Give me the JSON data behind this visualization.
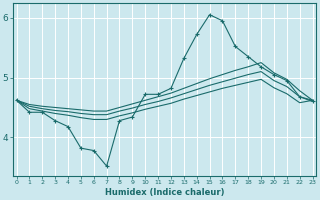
{
  "xlabel": "Humidex (Indice chaleur)",
  "bg_color": "#cce8ee",
  "line_color": "#1a6b6b",
  "grid_color": "#ffffff",
  "x": [
    0,
    1,
    2,
    3,
    4,
    5,
    6,
    7,
    8,
    9,
    10,
    11,
    12,
    13,
    14,
    15,
    16,
    17,
    18,
    19,
    20,
    21,
    22,
    23
  ],
  "y_main": [
    4.62,
    4.42,
    4.42,
    4.28,
    4.18,
    3.82,
    3.78,
    3.52,
    4.28,
    4.34,
    4.72,
    4.72,
    4.82,
    5.32,
    5.72,
    6.05,
    5.95,
    5.52,
    5.35,
    5.18,
    5.05,
    4.95,
    4.68,
    4.6
  ],
  "y_top": [
    4.62,
    4.55,
    4.52,
    4.5,
    4.48,
    4.46,
    4.44,
    4.44,
    4.5,
    4.56,
    4.62,
    4.68,
    4.74,
    4.82,
    4.9,
    4.98,
    5.05,
    5.12,
    5.18,
    5.25,
    5.08,
    4.97,
    4.78,
    4.62
  ],
  "y_mid": [
    4.62,
    4.52,
    4.48,
    4.45,
    4.43,
    4.4,
    4.38,
    4.38,
    4.44,
    4.49,
    4.55,
    4.6,
    4.66,
    4.73,
    4.8,
    4.87,
    4.93,
    4.99,
    5.05,
    5.1,
    4.95,
    4.85,
    4.68,
    4.62
  ],
  "y_bot": [
    4.62,
    4.48,
    4.44,
    4.4,
    4.37,
    4.33,
    4.3,
    4.3,
    4.36,
    4.41,
    4.47,
    4.52,
    4.57,
    4.64,
    4.7,
    4.76,
    4.82,
    4.87,
    4.92,
    4.97,
    4.83,
    4.73,
    4.58,
    4.62
  ],
  "ylim": [
    3.35,
    6.25
  ],
  "yticks": [
    4,
    5,
    6
  ],
  "xlim": [
    -0.3,
    23.3
  ]
}
